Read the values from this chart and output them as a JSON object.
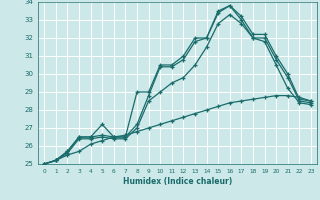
{
  "xlabel": "Humidex (Indice chaleur)",
  "bg_color": "#cce8e8",
  "grid_color": "#ffffff",
  "line_color": "#1a6b6b",
  "xlim": [
    -0.5,
    23.5
  ],
  "ylim": [
    25,
    34
  ],
  "xticks": [
    0,
    1,
    2,
    3,
    4,
    5,
    6,
    7,
    8,
    9,
    10,
    11,
    12,
    13,
    14,
    15,
    16,
    17,
    18,
    19,
    20,
    21,
    22,
    23
  ],
  "yticks": [
    25,
    26,
    27,
    28,
    29,
    30,
    31,
    32,
    33,
    34
  ],
  "series": [
    [
      25.0,
      25.2,
      25.7,
      26.5,
      26.5,
      27.2,
      26.5,
      26.5,
      29.0,
      29.0,
      30.5,
      30.5,
      31.0,
      32.0,
      32.0,
      33.5,
      33.8,
      33.2,
      32.2,
      32.2,
      31.0,
      30.0,
      28.6,
      28.5
    ],
    [
      25.0,
      25.2,
      25.7,
      26.5,
      26.5,
      26.6,
      26.5,
      26.5,
      27.2,
      28.8,
      30.4,
      30.4,
      30.8,
      31.8,
      32.0,
      33.4,
      33.8,
      33.0,
      32.0,
      32.0,
      30.8,
      29.8,
      28.5,
      28.4
    ],
    [
      25.0,
      25.2,
      25.6,
      26.4,
      26.4,
      26.5,
      26.4,
      26.4,
      27.0,
      28.5,
      29.0,
      29.5,
      29.8,
      30.5,
      31.5,
      32.8,
      33.3,
      32.8,
      32.0,
      31.8,
      30.5,
      29.2,
      28.4,
      28.3
    ],
    [
      25.0,
      25.2,
      25.5,
      25.7,
      26.1,
      26.3,
      26.5,
      26.6,
      26.8,
      27.0,
      27.2,
      27.4,
      27.6,
      27.8,
      28.0,
      28.2,
      28.4,
      28.5,
      28.6,
      28.7,
      28.8,
      28.8,
      28.7,
      28.5
    ]
  ]
}
